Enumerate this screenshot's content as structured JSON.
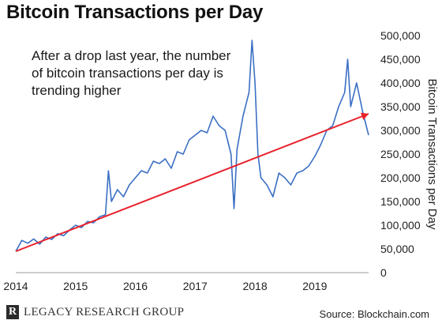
{
  "chart_data": {
    "type": "line",
    "title": "Bitcoin Transactions per Day",
    "annotation_lines": [
      "After a drop last year, the number",
      "of bitcoin transactions per day is",
      "trending higher"
    ],
    "ylabel": "Bitcoin Transactions per Day",
    "xlim": [
      2014.0,
      2019.9
    ],
    "ylim": [
      0,
      500000
    ],
    "x_ticks": [
      "2014",
      "2015",
      "2016",
      "2017",
      "2018",
      "2019"
    ],
    "y_ticks": [
      "0",
      "50,000",
      "100,000",
      "150,000",
      "200,000",
      "250,000",
      "300,000",
      "350,000",
      "400,000",
      "450,000",
      "500,000"
    ],
    "grid": false,
    "series": [
      {
        "color": "#3a6fc4",
        "x": [
          2014.0,
          2014.1,
          2014.2,
          2014.3,
          2014.4,
          2014.5,
          2014.6,
          2014.7,
          2014.8,
          2014.9,
          2015.0,
          2015.1,
          2015.2,
          2015.3,
          2015.4,
          2015.5,
          2015.55,
          2015.6,
          2015.7,
          2015.8,
          2015.9,
          2016.0,
          2016.1,
          2016.2,
          2016.3,
          2016.4,
          2016.5,
          2016.6,
          2016.7,
          2016.8,
          2016.9,
          2017.0,
          2017.1,
          2017.2,
          2017.3,
          2017.4,
          2017.5,
          2017.6,
          2017.65,
          2017.7,
          2017.8,
          2017.9,
          2017.95,
          2018.0,
          2018.05,
          2018.1,
          2018.2,
          2018.3,
          2018.4,
          2018.5,
          2018.6,
          2018.7,
          2018.8,
          2018.9,
          2019.0,
          2019.1,
          2019.2,
          2019.3,
          2019.4,
          2019.5,
          2019.55,
          2019.6,
          2019.7,
          2019.8,
          2019.9
        ],
        "values": [
          45000,
          68000,
          62000,
          71000,
          60000,
          75000,
          70000,
          82000,
          78000,
          90000,
          100000,
          95000,
          108000,
          105000,
          118000,
          122000,
          215000,
          150000,
          175000,
          160000,
          185000,
          200000,
          215000,
          210000,
          235000,
          230000,
          240000,
          220000,
          255000,
          250000,
          280000,
          290000,
          300000,
          295000,
          330000,
          310000,
          300000,
          250000,
          135000,
          260000,
          330000,
          380000,
          490000,
          400000,
          250000,
          200000,
          185000,
          160000,
          210000,
          200000,
          185000,
          210000,
          215000,
          225000,
          245000,
          270000,
          300000,
          310000,
          350000,
          380000,
          450000,
          350000,
          400000,
          340000,
          290000
        ]
      },
      {
        "name": "trend",
        "color": "#e8202a",
        "x": [
          2014.0,
          2019.9
        ],
        "values": [
          45000,
          335000
        ]
      }
    ]
  },
  "footer": {
    "logo_mark": "R",
    "brand": "LEGACY RESEARCH GROUP",
    "source": "Source: Blockchain.com"
  }
}
